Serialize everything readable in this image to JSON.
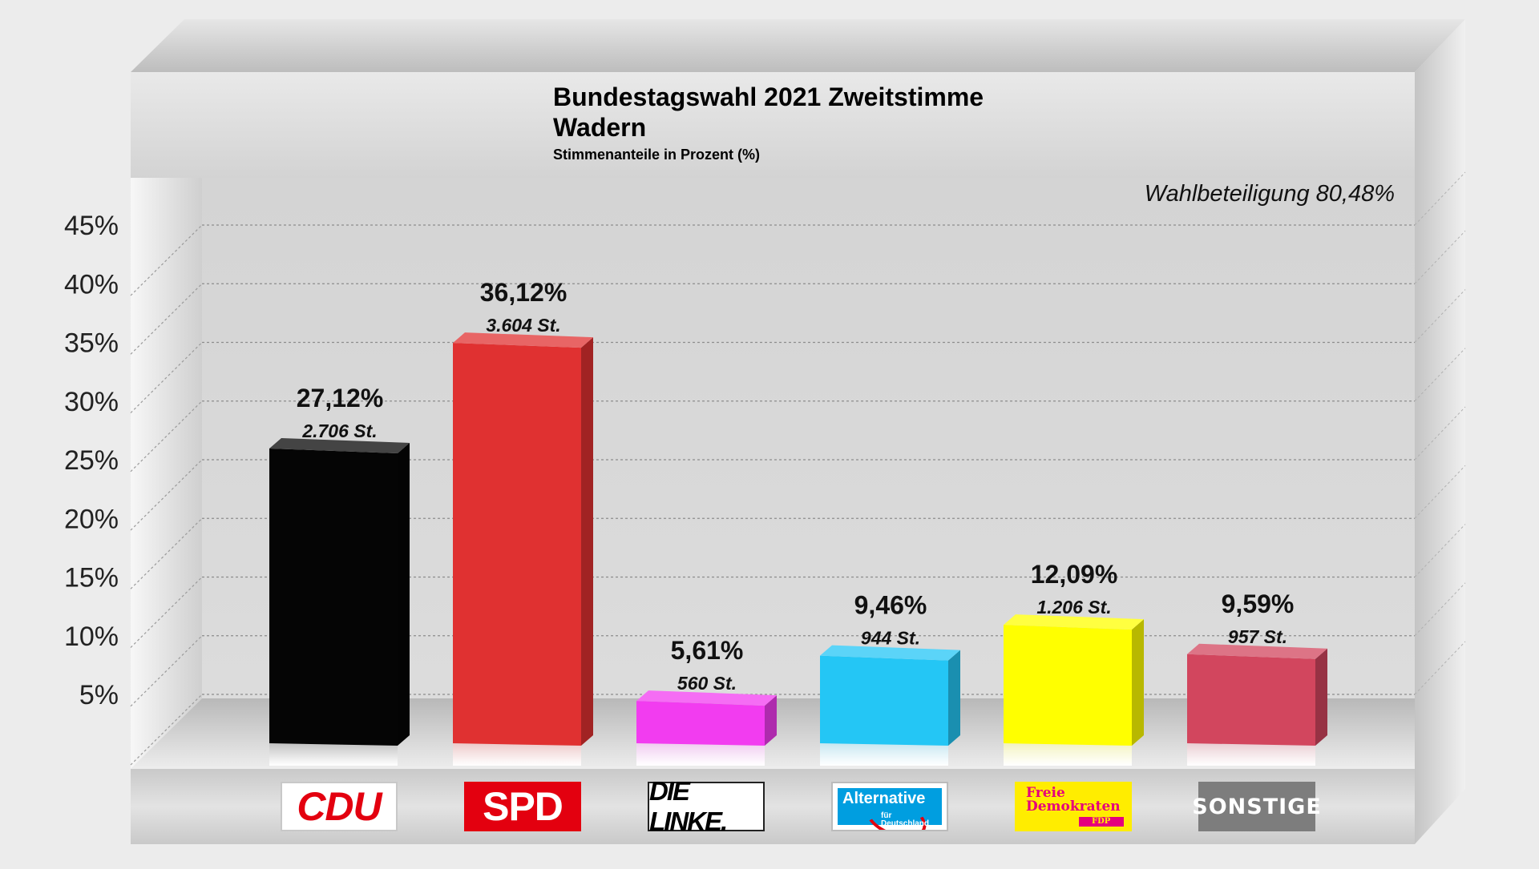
{
  "chart_data": {
    "type": "bar",
    "title": "Bundestagswahl 2021 Zweitstimme",
    "subtitle": "Wadern",
    "ylabel": "Stimmenanteile in Prozent (%)",
    "annotation": "Wahlbeteiligung 80,48%",
    "ylim": [
      0,
      45
    ],
    "yticks": [
      "5%",
      "10%",
      "15%",
      "20%",
      "25%",
      "30%",
      "35%",
      "40%",
      "45%"
    ],
    "grid": true,
    "categories": [
      "CDU",
      "SPD",
      "DIE LINKE.",
      "Alternative für Deutschland",
      "Freie Demokraten FDP",
      "SONSTIGE"
    ],
    "values": [
      27.12,
      36.12,
      5.61,
      9.46,
      12.09,
      9.59
    ],
    "value_labels": [
      "27,12%",
      "36,12%",
      "5,61%",
      "9,46%",
      "12,09%",
      "9,59%"
    ],
    "vote_labels": [
      "2.706 St.",
      "3.604 St.",
      "560 St.",
      "944 St.",
      "1.206 St.",
      "957 St."
    ],
    "colors": [
      "#050505",
      "#e03131",
      "#f23cf0",
      "#24c6f5",
      "#ffff00",
      "#d2465e"
    ]
  },
  "logos": {
    "cdu": "CDU",
    "spd": "SPD",
    "linke": "DIE LINKE.",
    "afd_main": "Alternative",
    "afd_sub1": "für",
    "afd_sub2": "Deutschland",
    "fdp_line1": "Freie",
    "fdp_line2": "Demokraten",
    "fdp_tag": "FDP",
    "sonstige": "SONSTIGE"
  }
}
